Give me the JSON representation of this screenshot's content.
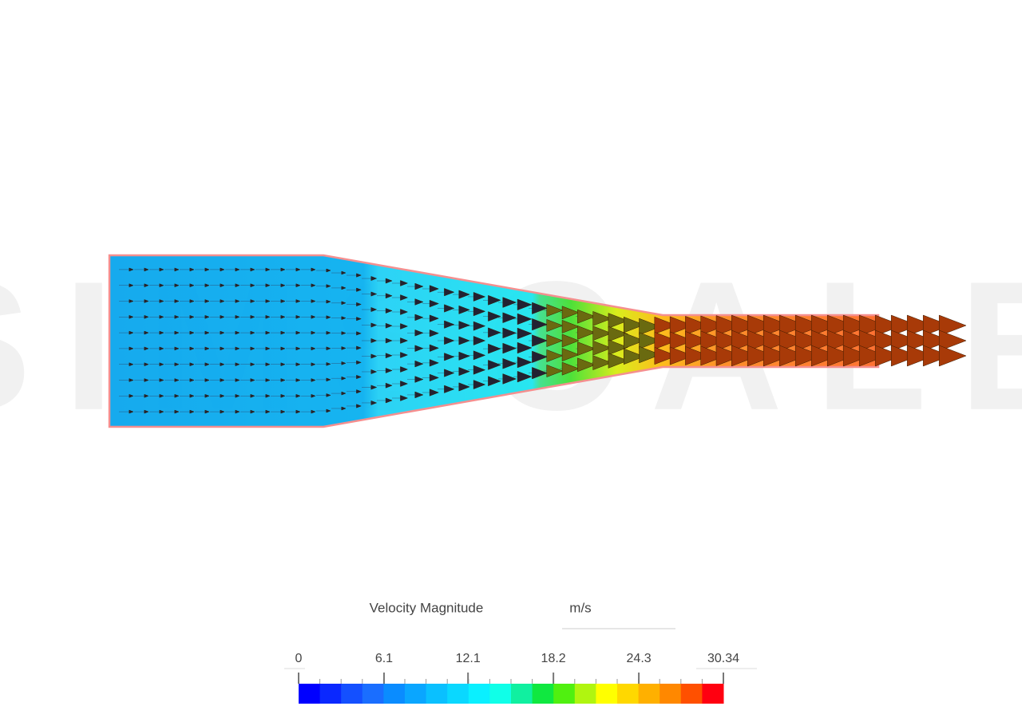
{
  "watermark": "SIMSCALE",
  "colorbar": {
    "title": "Velocity Magnitude",
    "unit": "m/s",
    "range": [
      0,
      30.34
    ],
    "ticks": [
      0,
      6.1,
      12.1,
      18.2,
      24.3,
      30.34
    ]
  }
}
